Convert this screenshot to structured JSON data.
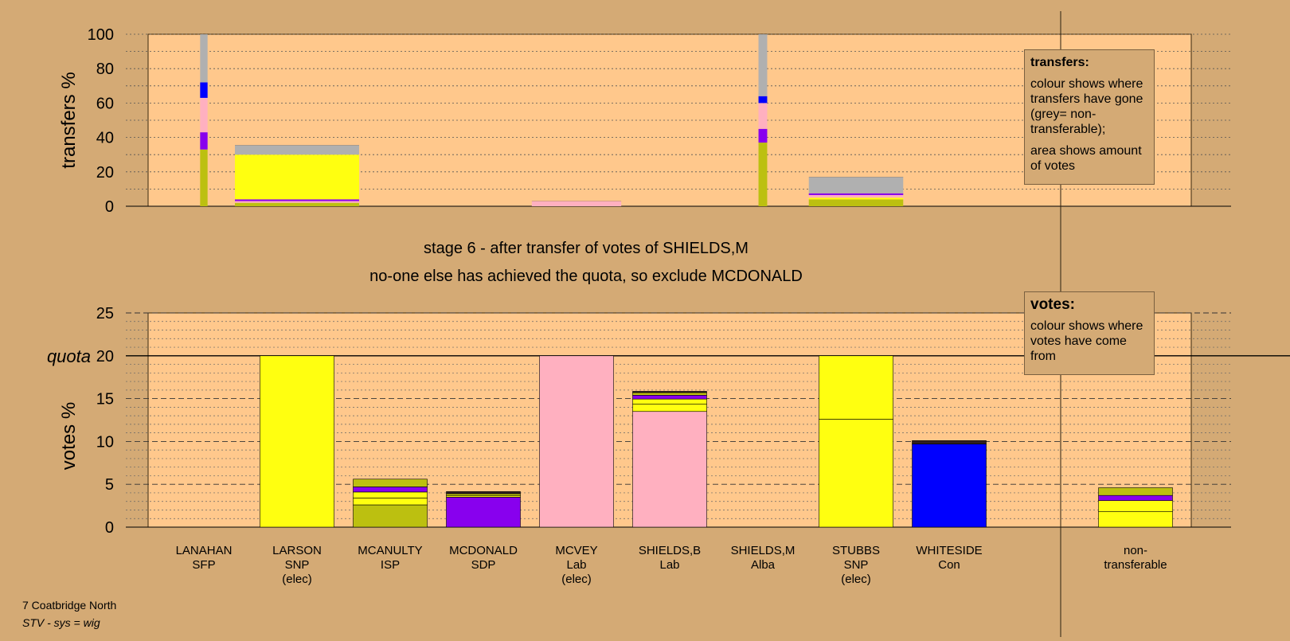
{
  "colors": {
    "background": "#d4aa75",
    "plot_area": "#ffc88c",
    "SFP": "#bcc010",
    "SNP": "#ffff10",
    "ISP": "#bcc010",
    "SDP": "#8800ee",
    "Lab": "#ffb0c0",
    "Alba": "#0000ff",
    "Con": "#0000ff",
    "dark": "#302020",
    "nontransferable": "#b0b0b0"
  },
  "titles": {
    "stage": "stage 6 - after transfer of votes of SHIELDS,M",
    "action": "no-one else has achieved the quota, so exclude MCDONALD"
  },
  "legends": {
    "transfers": {
      "title": "transfers:",
      "line1": "colour shows where transfers have gone (grey= non-transferable);",
      "line2": "area shows amount of votes"
    },
    "votes": {
      "title": "votes:",
      "line1": "colour shows where votes have come from"
    }
  },
  "footer": {
    "ward": "7 Coatbridge North",
    "system": "STV - sys = wig"
  },
  "chart_data": [
    {
      "type": "bar",
      "subtype": "stacked-variable-width",
      "ylabel": "transfers %",
      "ylim": [
        0,
        100
      ],
      "yticks": [
        0,
        20,
        40,
        60,
        80,
        100
      ],
      "grid": true,
      "legend": "top-right",
      "bars": [
        {
          "category": "LANAHAN",
          "width_share": 0.06,
          "segments": [
            {
              "color": "SFP",
              "value": 33
            },
            {
              "color": "SDP",
              "value": 10
            },
            {
              "color": "Lab",
              "value": 20
            },
            {
              "color": "Alba",
              "value": 9
            },
            {
              "color": "nontransferable",
              "value": 28
            }
          ]
        },
        {
          "category": "LARSON",
          "width_share": 1,
          "segments": [
            {
              "color": "SFP",
              "value": 2
            },
            {
              "color": "Lab",
              "value": 1
            },
            {
              "color": "SDP",
              "value": 1
            },
            {
              "color": "SNP",
              "value": 26
            },
            {
              "color": "nontransferable",
              "value": 5.5
            }
          ]
        },
        {
          "category": "MCVEY",
          "width_share": 0.72,
          "segments": [
            {
              "color": "Lab",
              "value": 3
            }
          ]
        },
        {
          "category": "SHIELDS,M",
          "width_share": 0.07,
          "segments": [
            {
              "color": "SFP",
              "value": 37
            },
            {
              "color": "SDP",
              "value": 8
            },
            {
              "color": "Lab",
              "value": 15
            },
            {
              "color": "Alba",
              "value": 4
            },
            {
              "color": "nontransferable",
              "value": 36
            }
          ]
        },
        {
          "category": "STUBBS",
          "width_share": 0.76,
          "segments": [
            {
              "color": "SFP",
              "value": 4
            },
            {
              "color": "SNP",
              "value": 1
            },
            {
              "color": "Lab",
              "value": 1.5
            },
            {
              "color": "SDP",
              "value": 1
            },
            {
              "color": "nontransferable",
              "value": 9.5
            }
          ]
        }
      ]
    },
    {
      "type": "bar",
      "subtype": "stacked",
      "ylabel": "votes %",
      "ylim": [
        0,
        25
      ],
      "yticks": [
        0,
        5,
        10,
        15,
        20,
        25
      ],
      "quota": 20,
      "quota_label": "quota",
      "grid": true,
      "legend": "top-right",
      "categories": [
        {
          "name": "LANAHAN",
          "party": "SFP",
          "note": ""
        },
        {
          "name": "LARSON",
          "party": "SNP",
          "note": "(elec)"
        },
        {
          "name": "MCANULTY",
          "party": "ISP",
          "note": ""
        },
        {
          "name": "MCDONALD",
          "party": "SDP",
          "note": ""
        },
        {
          "name": "MCVEY",
          "party": "Lab",
          "note": "(elec)"
        },
        {
          "name": "SHIELDS,B",
          "party": "Lab",
          "note": ""
        },
        {
          "name": "SHIELDS,M",
          "party": "Alba",
          "note": ""
        },
        {
          "name": "STUBBS",
          "party": "SNP",
          "note": "(elec)"
        },
        {
          "name": "WHITESIDE",
          "party": "Con",
          "note": ""
        },
        {
          "name": "non-",
          "party": "transferable",
          "note": ""
        }
      ],
      "stacks": [
        [],
        [
          {
            "color": "SNP",
            "value": 20
          }
        ],
        [
          {
            "color": "ISP",
            "value": 2.6
          },
          {
            "color": "SNP",
            "value": 0.8
          },
          {
            "color": "SNP",
            "value": 0.7
          },
          {
            "color": "SDP",
            "value": 0.6
          },
          {
            "color": "SFP",
            "value": 0.9
          }
        ],
        [
          {
            "color": "SDP",
            "value": 3.5
          },
          {
            "color": "SNP",
            "value": 0.15
          },
          {
            "color": "SFP",
            "value": 0.25
          },
          {
            "color": "dark",
            "value": 0.25
          }
        ],
        [
          {
            "color": "Lab",
            "value": 20
          }
        ],
        [
          {
            "color": "Lab",
            "value": 13.5
          },
          {
            "color": "SNP",
            "value": 0.85
          },
          {
            "color": "SNP",
            "value": 0.6
          },
          {
            "color": "SDP",
            "value": 0.45
          },
          {
            "color": "SFP",
            "value": 0.3
          },
          {
            "color": "dark",
            "value": 0.15
          }
        ],
        [],
        [
          {
            "color": "SNP",
            "value": 12.6
          },
          {
            "color": "SNP",
            "value": 7.4
          }
        ],
        [
          {
            "color": "Alba",
            "value": 9.7
          },
          {
            "color": "dark",
            "value": 0.4
          }
        ],
        [
          {
            "color": "SNP",
            "value": 1.8
          },
          {
            "color": "SNP",
            "value": 1.3
          },
          {
            "color": "SDP",
            "value": 0.6
          },
          {
            "color": "SFP",
            "value": 0.9
          }
        ]
      ]
    }
  ]
}
